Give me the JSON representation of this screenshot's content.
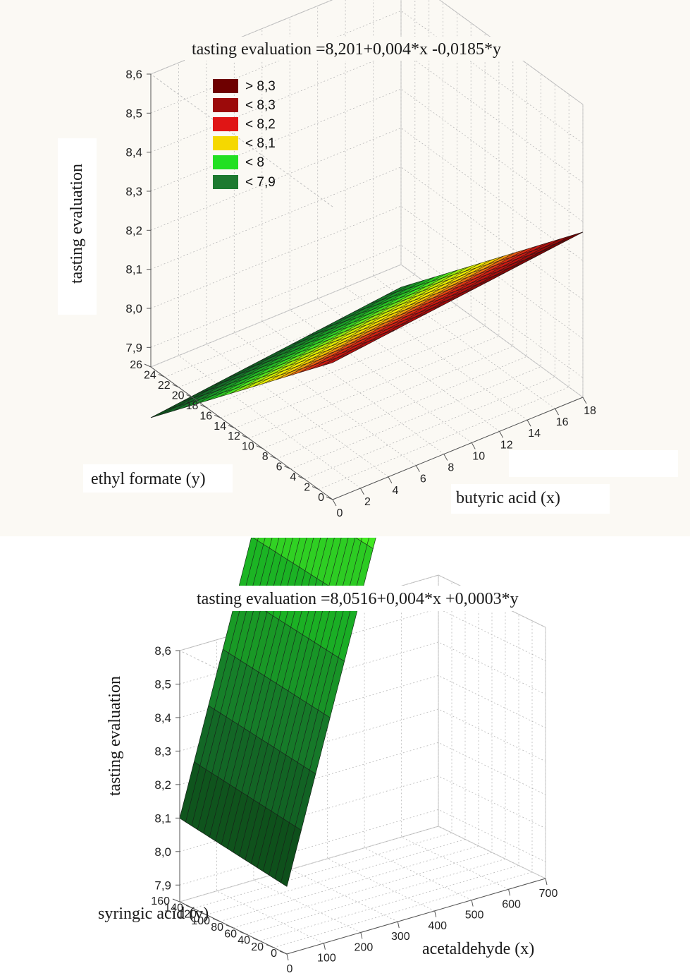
{
  "legend": [
    {
      "label": "> 8,3",
      "color": "#6e0000"
    },
    {
      "label": "< 8,3",
      "color": "#9c0a0a"
    },
    {
      "label": "< 8,2",
      "color": "#e01515"
    },
    {
      "label": "< 8,1",
      "color": "#f5d800"
    },
    {
      "label": "< 8",
      "color": "#22e022"
    },
    {
      "label": "< 7,9",
      "color": "#1d7a30"
    }
  ],
  "chart_data": [
    {
      "type": "surface3d",
      "title": "tasting evaluation =8,201+0,004*x -0,0185*y",
      "equation": {
        "intercept": 8.201,
        "coef_x": 0.004,
        "coef_y": -0.0185
      },
      "xlabel": "butyric acid (x)",
      "ylabel": "ethyl formate (y)",
      "zlabel": "tasting evaluation",
      "xlim": [
        0,
        18
      ],
      "ylim": [
        0,
        26
      ],
      "zlim": [
        7.85,
        8.6
      ],
      "x_ticks": [
        "0",
        "2",
        "4",
        "6",
        "8",
        "10",
        "12",
        "14",
        "16",
        "18"
      ],
      "y_ticks": [
        "0",
        "2",
        "4",
        "6",
        "8",
        "10",
        "12",
        "14",
        "16",
        "18",
        "20",
        "22",
        "24",
        "26"
      ],
      "z_ticks": [
        "7,9",
        "8,0",
        "8,1",
        "8,2",
        "8,3",
        "8,4",
        "8,5",
        "8,6"
      ],
      "grid": true
    },
    {
      "type": "surface3d",
      "title": "tasting evaluation =8,0516+0,004*x +0,0003*y",
      "equation": {
        "intercept": 8.0516,
        "coef_x": 0.004,
        "coef_y": 0.0003
      },
      "xlabel": "acetaldehyde (x)",
      "ylabel": "syringic acid (y)",
      "zlabel": "tasting evaluation",
      "xlim": [
        0,
        700
      ],
      "ylim": [
        0,
        160
      ],
      "zlim": [
        7.85,
        8.6
      ],
      "x_ticks": [
        "0",
        "100",
        "200",
        "300",
        "400",
        "500",
        "600",
        "700"
      ],
      "y_ticks": [
        "0",
        "20",
        "40",
        "60",
        "80",
        "100",
        "120",
        "140",
        "160"
      ],
      "z_ticks": [
        "7,9",
        "8,0",
        "8,1",
        "8,2",
        "8,3",
        "8,4",
        "8,5",
        "8,6"
      ],
      "grid": true
    }
  ]
}
